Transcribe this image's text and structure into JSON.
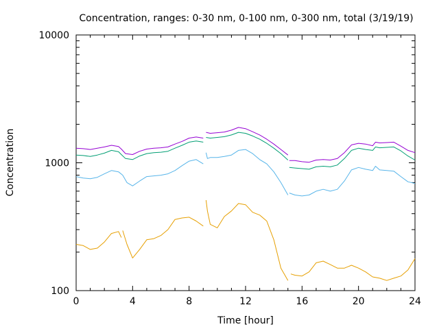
{
  "chart_data": {
    "type": "line",
    "title": "Concentration, ranges: 0-30 nm, 0-100 nm, 0-300 nm, total (3/19/19)",
    "xlabel": "Time [hour]",
    "ylabel": "Concentration",
    "xlim": [
      0,
      24
    ],
    "ylim": [
      100,
      10000
    ],
    "yscale": "log",
    "grid": false,
    "legend": "none",
    "x_ticks": [
      0,
      4,
      8,
      12,
      16,
      20,
      24
    ],
    "x_tick_labels": [
      "0",
      "4",
      "8",
      "12",
      "16",
      "20",
      "24"
    ],
    "y_ticks": [
      100,
      1000,
      10000
    ],
    "y_tick_labels": [
      "100",
      "1000",
      "10000"
    ],
    "series": [
      {
        "color": "#9400d3",
        "segments": [
          [
            [
              0,
              1300
            ],
            [
              0.5,
              1290
            ],
            [
              1,
              1270
            ],
            [
              1.5,
              1300
            ],
            [
              2,
              1330
            ],
            [
              2.5,
              1370
            ],
            [
              3,
              1340
            ],
            [
              3.2,
              1280
            ],
            [
              3.5,
              1180
            ],
            [
              4,
              1160
            ],
            [
              4.5,
              1230
            ],
            [
              5,
              1280
            ],
            [
              5.5,
              1300
            ],
            [
              6,
              1310
            ],
            [
              6.5,
              1330
            ],
            [
              7,
              1400
            ],
            [
              7.5,
              1470
            ],
            [
              8,
              1560
            ],
            [
              8.5,
              1590
            ],
            [
              9,
              1560
            ]
          ],
          [
            [
              9.2,
              1730
            ],
            [
              9.5,
              1700
            ],
            [
              10,
              1720
            ],
            [
              10.5,
              1740
            ],
            [
              11,
              1800
            ],
            [
              11.5,
              1890
            ],
            [
              12,
              1850
            ],
            [
              12.5,
              1750
            ],
            [
              13,
              1650
            ],
            [
              13.5,
              1530
            ],
            [
              14,
              1400
            ],
            [
              14.5,
              1270
            ],
            [
              15,
              1150
            ]
          ],
          [
            [
              15.1,
              1040
            ],
            [
              15.5,
              1040
            ],
            [
              16,
              1020
            ],
            [
              16.5,
              1010
            ],
            [
              17,
              1050
            ],
            [
              17.5,
              1060
            ],
            [
              18,
              1050
            ],
            [
              18.5,
              1080
            ],
            [
              19,
              1200
            ],
            [
              19.5,
              1380
            ],
            [
              20,
              1420
            ],
            [
              20.5,
              1400
            ],
            [
              21,
              1360
            ],
            [
              21.2,
              1450
            ],
            [
              21.5,
              1430
            ],
            [
              22,
              1440
            ],
            [
              22.5,
              1450
            ],
            [
              23,
              1350
            ],
            [
              23.5,
              1250
            ],
            [
              24,
              1200
            ]
          ]
        ]
      },
      {
        "color": "#009e73",
        "segments": [
          [
            [
              0,
              1150
            ],
            [
              0.5,
              1140
            ],
            [
              1,
              1120
            ],
            [
              1.5,
              1150
            ],
            [
              2,
              1190
            ],
            [
              2.5,
              1250
            ],
            [
              3,
              1220
            ],
            [
              3.2,
              1160
            ],
            [
              3.5,
              1080
            ],
            [
              4,
              1060
            ],
            [
              4.5,
              1130
            ],
            [
              5,
              1180
            ],
            [
              5.5,
              1200
            ],
            [
              6,
              1210
            ],
            [
              6.5,
              1230
            ],
            [
              7,
              1300
            ],
            [
              7.5,
              1370
            ],
            [
              8,
              1450
            ],
            [
              8.5,
              1480
            ],
            [
              9,
              1450
            ]
          ],
          [
            [
              9.2,
              1580
            ],
            [
              9.5,
              1560
            ],
            [
              10,
              1580
            ],
            [
              10.5,
              1600
            ],
            [
              11,
              1650
            ],
            [
              11.5,
              1730
            ],
            [
              12,
              1700
            ],
            [
              12.5,
              1620
            ],
            [
              13,
              1530
            ],
            [
              13.5,
              1420
            ],
            [
              14,
              1300
            ],
            [
              14.5,
              1180
            ],
            [
              15,
              1050
            ]
          ],
          [
            [
              15.1,
              920
            ],
            [
              15.5,
              910
            ],
            [
              16,
              900
            ],
            [
              16.5,
              890
            ],
            [
              17,
              930
            ],
            [
              17.5,
              940
            ],
            [
              18,
              930
            ],
            [
              18.5,
              960
            ],
            [
              19,
              1080
            ],
            [
              19.5,
              1250
            ],
            [
              20,
              1300
            ],
            [
              20.5,
              1270
            ],
            [
              21,
              1250
            ],
            [
              21.2,
              1330
            ],
            [
              21.5,
              1310
            ],
            [
              22,
              1320
            ],
            [
              22.5,
              1330
            ],
            [
              23,
              1240
            ],
            [
              23.5,
              1130
            ],
            [
              24,
              1050
            ]
          ]
        ]
      },
      {
        "color": "#56b4e9",
        "segments": [
          [
            [
              0,
              780
            ],
            [
              0.5,
              760
            ],
            [
              1,
              750
            ],
            [
              1.5,
              770
            ],
            [
              2,
              820
            ],
            [
              2.5,
              870
            ],
            [
              3,
              850
            ],
            [
              3.3,
              800
            ],
            [
              3.6,
              700
            ],
            [
              4,
              660
            ],
            [
              4.5,
              720
            ],
            [
              5,
              780
            ],
            [
              5.5,
              790
            ],
            [
              6,
              800
            ],
            [
              6.5,
              820
            ],
            [
              7,
              870
            ],
            [
              7.5,
              950
            ],
            [
              8,
              1030
            ],
            [
              8.5,
              1060
            ],
            [
              9,
              980
            ]
          ],
          [
            [
              9.2,
              1200
            ],
            [
              9.3,
              1080
            ],
            [
              9.5,
              1100
            ],
            [
              10,
              1100
            ],
            [
              10.5,
              1120
            ],
            [
              11,
              1150
            ],
            [
              11.5,
              1250
            ],
            [
              12,
              1270
            ],
            [
              12.5,
              1180
            ],
            [
              13,
              1060
            ],
            [
              13.5,
              980
            ],
            [
              14,
              850
            ],
            [
              14.5,
              700
            ],
            [
              15,
              560
            ]
          ],
          [
            [
              15.1,
              580
            ],
            [
              15.5,
              560
            ],
            [
              16,
              550
            ],
            [
              16.5,
              560
            ],
            [
              17,
              600
            ],
            [
              17.5,
              620
            ],
            [
              18,
              600
            ],
            [
              18.5,
              620
            ],
            [
              19,
              720
            ],
            [
              19.5,
              880
            ],
            [
              20,
              920
            ],
            [
              20.5,
              890
            ],
            [
              21,
              870
            ],
            [
              21.2,
              940
            ],
            [
              21.5,
              880
            ],
            [
              22,
              870
            ],
            [
              22.5,
              860
            ],
            [
              23,
              780
            ],
            [
              23.5,
              710
            ],
            [
              24,
              690
            ]
          ]
        ]
      },
      {
        "color": "#e69f00",
        "segments": [
          [
            [
              0,
              230
            ],
            [
              0.5,
              225
            ],
            [
              1,
              210
            ],
            [
              1.5,
              215
            ],
            [
              2,
              240
            ],
            [
              2.5,
              280
            ],
            [
              3,
              290
            ],
            [
              3.2,
              260
            ]
          ],
          [
            [
              3.3,
              295
            ],
            [
              3.6,
              230
            ],
            [
              4,
              180
            ],
            [
              4.5,
              210
            ],
            [
              5,
              250
            ],
            [
              5.5,
              255
            ],
            [
              6,
              270
            ],
            [
              6.5,
              300
            ],
            [
              7,
              360
            ],
            [
              7.5,
              370
            ],
            [
              8,
              375
            ],
            [
              8.5,
              350
            ],
            [
              9,
              320
            ]
          ],
          [
            [
              9.2,
              510
            ],
            [
              9.3,
              420
            ],
            [
              9.5,
              330
            ],
            [
              10,
              310
            ],
            [
              10.5,
              380
            ],
            [
              11,
              420
            ],
            [
              11.5,
              480
            ],
            [
              12,
              470
            ],
            [
              12.5,
              410
            ],
            [
              13,
              390
            ],
            [
              13.5,
              350
            ],
            [
              14,
              250
            ],
            [
              14.5,
              150
            ],
            [
              15,
              120
            ]
          ],
          [
            [
              15.2,
              135
            ],
            [
              15.5,
              132
            ],
            [
              16,
              130
            ],
            [
              16.5,
              140
            ],
            [
              17,
              165
            ],
            [
              17.5,
              170
            ],
            [
              18,
              160
            ],
            [
              18.5,
              150
            ],
            [
              19,
              150
            ],
            [
              19.5,
              158
            ],
            [
              20,
              150
            ],
            [
              20.5,
              140
            ],
            [
              21,
              128
            ],
            [
              21.5,
              125
            ],
            [
              22,
              120
            ],
            [
              22.5,
              125
            ],
            [
              23,
              130
            ],
            [
              23.5,
              145
            ],
            [
              24,
              178
            ]
          ]
        ]
      }
    ]
  }
}
